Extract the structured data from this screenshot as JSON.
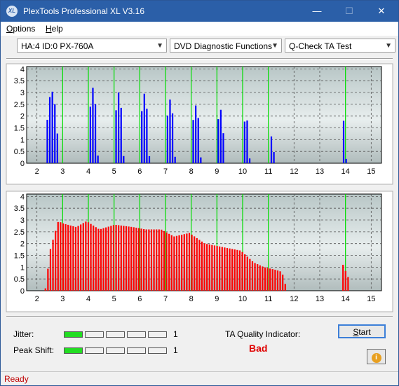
{
  "window": {
    "title": "PlexTools Professional XL V3.16",
    "logo": "XL",
    "minimize": "—",
    "maximize": "☐",
    "close": "✕"
  },
  "menu": {
    "options_first": "O",
    "options_rest": "ptions",
    "help_first": "H",
    "help_rest": "elp"
  },
  "toolbar": {
    "drive": "HA:4 ID:0  PX-760A",
    "function": "DVD Diagnostic Functions",
    "test": "Q-Check TA Test"
  },
  "chart_data": [
    {
      "type": "bar",
      "x_ticks": [
        "2",
        "3",
        "4",
        "5",
        "6",
        "7",
        "8",
        "9",
        "10",
        "11",
        "12",
        "13",
        "14",
        "15"
      ],
      "y_ticks": [
        "4",
        "3.5",
        "3",
        "2.5",
        "2",
        "1.5",
        "1",
        "0.5",
        "0"
      ],
      "xlim": [
        1.6,
        15.4
      ],
      "ylim": [
        0,
        4.1
      ],
      "series": [
        {
          "color": "#0000ff",
          "peaks": [
            {
              "center": 2.55,
              "width": 0.55,
              "height": 3.05
            },
            {
              "center": 4.15,
              "width": 0.4,
              "height": 3.2
            },
            {
              "center": 5.15,
              "width": 0.4,
              "height": 3.0
            },
            {
              "center": 6.15,
              "width": 0.4,
              "height": 2.95
            },
            {
              "center": 7.15,
              "width": 0.4,
              "height": 2.7
            },
            {
              "center": 8.15,
              "width": 0.4,
              "height": 2.45
            },
            {
              "center": 9.1,
              "width": 0.35,
              "height": 2.3
            },
            {
              "center": 10.1,
              "width": 0.3,
              "height": 2.0
            },
            {
              "center": 11.1,
              "width": 0.22,
              "height": 1.15
            },
            {
              "center": 13.9,
              "width": 0.2,
              "height": 1.8
            }
          ]
        }
      ]
    },
    {
      "type": "bar",
      "x_ticks": [
        "2",
        "3",
        "4",
        "5",
        "6",
        "7",
        "8",
        "9",
        "10",
        "11",
        "12",
        "13",
        "14",
        "15"
      ],
      "y_ticks": [
        "4",
        "3.5",
        "3",
        "2.5",
        "2",
        "1.5",
        "1",
        "0.5",
        "0"
      ],
      "xlim": [
        1.6,
        15.4
      ],
      "ylim": [
        0,
        4.1
      ],
      "series": [
        {
          "color": "#ff0000",
          "curve": [
            [
              2.3,
              0.1
            ],
            [
              2.5,
              1.8
            ],
            [
              2.8,
              2.95
            ],
            [
              3.0,
              2.85
            ],
            [
              3.5,
              2.7
            ],
            [
              3.9,
              2.95
            ],
            [
              4.4,
              2.6
            ],
            [
              5.0,
              2.8
            ],
            [
              5.7,
              2.7
            ],
            [
              6.2,
              2.6
            ],
            [
              6.8,
              2.6
            ],
            [
              7.3,
              2.3
            ],
            [
              7.9,
              2.45
            ],
            [
              8.5,
              2.0
            ],
            [
              9.2,
              1.85
            ],
            [
              9.9,
              1.7
            ],
            [
              10.4,
              1.2
            ],
            [
              10.8,
              1.0
            ],
            [
              11.2,
              0.9
            ],
            [
              11.5,
              0.8
            ],
            [
              11.65,
              0.2
            ]
          ],
          "spike": {
            "center": 14.0,
            "width": 0.25,
            "height": 1.1
          }
        }
      ]
    }
  ],
  "panel": {
    "jitter_label": "Jitter:",
    "jitter_value": "1",
    "jitter_level": 1,
    "peak_label": "Peak Shift:",
    "peak_value": "1",
    "peak_level": 1,
    "meter_cells": 5,
    "ta_label": "TA Quality Indicator:",
    "ta_result": "Bad",
    "start_first": "S",
    "start_rest": "tart",
    "info_icon": "i"
  },
  "status": {
    "text": "Ready"
  }
}
